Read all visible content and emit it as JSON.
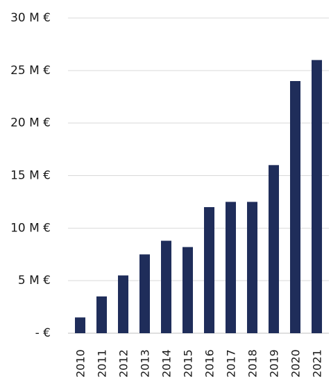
{
  "chart_data": {
    "type": "bar",
    "categories": [
      "2010",
      "2011",
      "2012",
      "2013",
      "2014",
      "2015",
      "2016",
      "2017",
      "2018",
      "2019",
      "2020",
      "2021"
    ],
    "values": [
      1.5,
      3.5,
      5.5,
      7.5,
      8.8,
      8.2,
      12.0,
      12.5,
      12.5,
      16.0,
      24.0,
      26.0
    ],
    "ylim": [
      0,
      30
    ],
    "yticks": [
      0,
      5,
      10,
      15,
      20,
      25,
      30
    ],
    "ytick_labels": [
      "- €",
      "5 M €",
      "10 M €",
      "15 M €",
      "20 M €",
      "25 M €",
      "30 M €"
    ],
    "title": "",
    "xlabel": "",
    "ylabel": "",
    "grid": true,
    "bar_color": "#1f2d5a",
    "grid_color": "#d9d9d9"
  }
}
